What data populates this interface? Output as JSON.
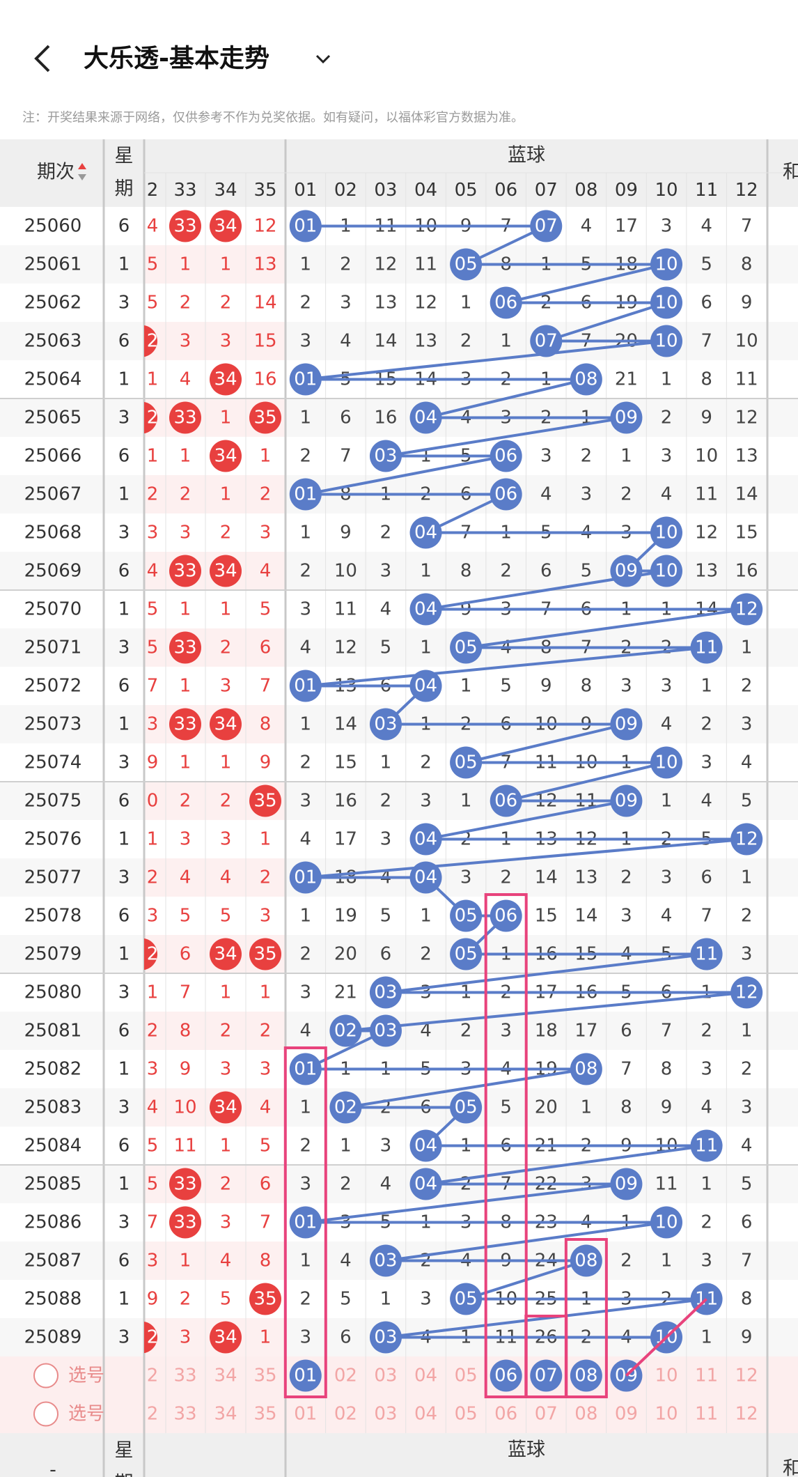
{
  "header": {
    "title": "大乐透-基本走势",
    "note": "注：开奖结果来源于网络，仅供参考不作为兑奖依据。如有疑问，以福体彩官方数据为准。"
  },
  "table": {
    "period_header": "期次",
    "week_header": [
      "星",
      "期"
    ],
    "blue_header": "蓝球",
    "sum_header": "和",
    "red_columns": [
      "2",
      "33",
      "34",
      "35"
    ],
    "blue_columns": [
      "01",
      "02",
      "03",
      "04",
      "05",
      "06",
      "07",
      "08",
      "09",
      "10",
      "11",
      "12"
    ],
    "rows": [
      {
        "period": "25060",
        "week": "6",
        "red": [
          "4",
          {
            "text": "33",
            "ball": true
          },
          {
            "text": "34",
            "ball": true
          },
          "12"
        ],
        "blue": [
          {
            "text": "01",
            "ball": true
          },
          "1",
          "11",
          "10",
          "9",
          "7",
          {
            "text": "07",
            "ball": true
          },
          "4",
          "17",
          "3",
          "4",
          "7"
        ]
      },
      {
        "period": "25061",
        "week": "1",
        "red": [
          "5",
          "1",
          "1",
          "13"
        ],
        "blue": [
          "1",
          "2",
          "12",
          "11",
          {
            "text": "05",
            "ball": true
          },
          "8",
          "1",
          "5",
          "18",
          {
            "text": "10",
            "ball": true
          },
          "5",
          "8"
        ]
      },
      {
        "period": "25062",
        "week": "3",
        "red": [
          "5",
          "2",
          "2",
          "14"
        ],
        "blue": [
          "2",
          "3",
          "13",
          "12",
          "1",
          {
            "text": "06",
            "ball": true
          },
          "2",
          "6",
          "19",
          {
            "text": "10",
            "ball": true
          },
          "6",
          "9"
        ]
      },
      {
        "period": "25063",
        "week": "6",
        "red": [
          {
            "text": "2",
            "ball": true
          },
          "3",
          "3",
          "15"
        ],
        "blue": [
          "3",
          "4",
          "14",
          "13",
          "2",
          "1",
          {
            "text": "07",
            "ball": true
          },
          "7",
          "20",
          {
            "text": "10",
            "ball": true
          },
          "7",
          "10"
        ]
      },
      {
        "period": "25064",
        "week": "1",
        "red": [
          "1",
          "4",
          {
            "text": "34",
            "ball": true
          },
          "16"
        ],
        "blue": [
          {
            "text": "01",
            "ball": true
          },
          "5",
          "15",
          "14",
          "3",
          "2",
          "1",
          {
            "text": "08",
            "ball": true
          },
          "21",
          "1",
          "8",
          "11"
        ]
      },
      {
        "period": "25065",
        "week": "3",
        "red": [
          {
            "text": "2",
            "ball": true
          },
          {
            "text": "33",
            "ball": true
          },
          "1",
          {
            "text": "35",
            "ball": true
          }
        ],
        "blue": [
          "1",
          "6",
          "16",
          {
            "text": "04",
            "ball": true
          },
          "4",
          "3",
          "2",
          "1",
          {
            "text": "09",
            "ball": true
          },
          "2",
          "9",
          "12"
        ]
      },
      {
        "period": "25066",
        "week": "6",
        "red": [
          "1",
          "1",
          {
            "text": "34",
            "ball": true
          },
          "1"
        ],
        "blue": [
          "2",
          "7",
          {
            "text": "03",
            "ball": true
          },
          "1",
          "5",
          {
            "text": "06",
            "ball": true
          },
          "3",
          "2",
          "1",
          "3",
          "10",
          "13"
        ]
      },
      {
        "period": "25067",
        "week": "1",
        "red": [
          "2",
          "2",
          "1",
          "2"
        ],
        "blue": [
          {
            "text": "01",
            "ball": true
          },
          "8",
          "1",
          "2",
          "6",
          {
            "text": "06",
            "ball": true
          },
          "4",
          "3",
          "2",
          "4",
          "11",
          "14"
        ]
      },
      {
        "period": "25068",
        "week": "3",
        "red": [
          "3",
          "3",
          "2",
          "3"
        ],
        "blue": [
          "1",
          "9",
          "2",
          {
            "text": "04",
            "ball": true
          },
          "7",
          "1",
          "5",
          "4",
          "3",
          {
            "text": "10",
            "ball": true
          },
          "12",
          "15"
        ]
      },
      {
        "period": "25069",
        "week": "6",
        "red": [
          "4",
          {
            "text": "33",
            "ball": true
          },
          {
            "text": "34",
            "ball": true
          },
          "4"
        ],
        "blue": [
          "2",
          "10",
          "3",
          "1",
          "8",
          "2",
          "6",
          "5",
          {
            "text": "09",
            "ball": true
          },
          {
            "text": "10",
            "ball": true
          },
          "13",
          "16"
        ]
      },
      {
        "period": "25070",
        "week": "1",
        "red": [
          "5",
          "1",
          "1",
          "5"
        ],
        "blue": [
          "3",
          "11",
          "4",
          {
            "text": "04",
            "ball": true
          },
          "9",
          "3",
          "7",
          "6",
          "1",
          "1",
          "14",
          {
            "text": "12",
            "ball": true
          }
        ]
      },
      {
        "period": "25071",
        "week": "3",
        "red": [
          "5",
          {
            "text": "33",
            "ball": true
          },
          "2",
          "6"
        ],
        "blue": [
          "4",
          "12",
          "5",
          "1",
          {
            "text": "05",
            "ball": true
          },
          "4",
          "8",
          "7",
          "2",
          "2",
          {
            "text": "11",
            "ball": true
          },
          "1"
        ]
      },
      {
        "period": "25072",
        "week": "6",
        "red": [
          "7",
          "1",
          "3",
          "7"
        ],
        "blue": [
          {
            "text": "01",
            "ball": true
          },
          "13",
          "6",
          {
            "text": "04",
            "ball": true
          },
          "1",
          "5",
          "9",
          "8",
          "3",
          "3",
          "1",
          "2"
        ]
      },
      {
        "period": "25073",
        "week": "1",
        "red": [
          "3",
          {
            "text": "33",
            "ball": true
          },
          {
            "text": "34",
            "ball": true
          },
          "8"
        ],
        "blue": [
          "1",
          "14",
          {
            "text": "03",
            "ball": true
          },
          "1",
          "2",
          "6",
          "10",
          "9",
          {
            "text": "09",
            "ball": true
          },
          "4",
          "2",
          "3"
        ]
      },
      {
        "period": "25074",
        "week": "3",
        "red": [
          "9",
          "1",
          "1",
          "9"
        ],
        "blue": [
          "2",
          "15",
          "1",
          "2",
          {
            "text": "05",
            "ball": true
          },
          "7",
          "11",
          "10",
          "1",
          {
            "text": "10",
            "ball": true
          },
          "3",
          "4"
        ]
      },
      {
        "period": "25075",
        "week": "6",
        "red": [
          "0",
          "2",
          "2",
          {
            "text": "35",
            "ball": true
          }
        ],
        "blue": [
          "3",
          "16",
          "2",
          "3",
          "1",
          {
            "text": "06",
            "ball": true
          },
          "12",
          "11",
          {
            "text": "09",
            "ball": true
          },
          "1",
          "4",
          "5"
        ]
      },
      {
        "period": "25076",
        "week": "1",
        "red": [
          "1",
          "3",
          "3",
          "1"
        ],
        "blue": [
          "4",
          "17",
          "3",
          {
            "text": "04",
            "ball": true
          },
          "2",
          "1",
          "13",
          "12",
          "1",
          "2",
          "5",
          {
            "text": "12",
            "ball": true
          }
        ]
      },
      {
        "period": "25077",
        "week": "3",
        "red": [
          "2",
          "4",
          "4",
          "2"
        ],
        "blue": [
          {
            "text": "01",
            "ball": true
          },
          "18",
          "4",
          {
            "text": "04",
            "ball": true
          },
          "3",
          "2",
          "14",
          "13",
          "2",
          "3",
          "6",
          "1"
        ]
      },
      {
        "period": "25078",
        "week": "6",
        "red": [
          "3",
          "5",
          "5",
          "3"
        ],
        "blue": [
          "1",
          "19",
          "5",
          "1",
          {
            "text": "05",
            "ball": true
          },
          {
            "text": "06",
            "ball": true
          },
          "15",
          "14",
          "3",
          "4",
          "7",
          "2"
        ]
      },
      {
        "period": "25079",
        "week": "1",
        "red": [
          {
            "text": "2",
            "ball": true
          },
          "6",
          {
            "text": "34",
            "ball": true
          },
          {
            "text": "35",
            "ball": true
          }
        ],
        "blue": [
          "2",
          "20",
          "6",
          "2",
          {
            "text": "05",
            "ball": true
          },
          "1",
          "16",
          "15",
          "4",
          "5",
          {
            "text": "11",
            "ball": true
          },
          "3"
        ]
      },
      {
        "period": "25080",
        "week": "3",
        "red": [
          "1",
          "7",
          "1",
          "1"
        ],
        "blue": [
          "3",
          "21",
          {
            "text": "03",
            "ball": true
          },
          "3",
          "1",
          "2",
          "17",
          "16",
          "5",
          "6",
          "1",
          {
            "text": "12",
            "ball": true
          }
        ]
      },
      {
        "period": "25081",
        "week": "6",
        "red": [
          "2",
          "8",
          "2",
          "2"
        ],
        "blue": [
          "4",
          {
            "text": "02",
            "ball": true
          },
          {
            "text": "03",
            "ball": true
          },
          "4",
          "2",
          "3",
          "18",
          "17",
          "6",
          "7",
          "2",
          "1"
        ]
      },
      {
        "period": "25082",
        "week": "1",
        "red": [
          "3",
          "9",
          "3",
          "3"
        ],
        "blue": [
          {
            "text": "01",
            "ball": true
          },
          "1",
          "1",
          "5",
          "3",
          "4",
          "19",
          {
            "text": "08",
            "ball": true
          },
          "7",
          "8",
          "3",
          "2"
        ]
      },
      {
        "period": "25083",
        "week": "3",
        "red": [
          "4",
          "10",
          {
            "text": "34",
            "ball": true
          },
          "4"
        ],
        "blue": [
          "1",
          {
            "text": "02",
            "ball": true
          },
          "2",
          "6",
          {
            "text": "05",
            "ball": true
          },
          "5",
          "20",
          "1",
          "8",
          "9",
          "4",
          "3"
        ]
      },
      {
        "period": "25084",
        "week": "6",
        "red": [
          "5",
          "11",
          "1",
          "5"
        ],
        "blue": [
          "2",
          "1",
          "3",
          {
            "text": "04",
            "ball": true
          },
          "1",
          "6",
          "21",
          "2",
          "9",
          "10",
          {
            "text": "11",
            "ball": true
          },
          "4"
        ]
      },
      {
        "period": "25085",
        "week": "1",
        "red": [
          "5",
          {
            "text": "33",
            "ball": true
          },
          "2",
          "6"
        ],
        "blue": [
          "3",
          "2",
          "4",
          {
            "text": "04",
            "ball": true
          },
          "2",
          "7",
          "22",
          "3",
          {
            "text": "09",
            "ball": true
          },
          "11",
          "1",
          "5"
        ]
      },
      {
        "period": "25086",
        "week": "3",
        "red": [
          "7",
          {
            "text": "33",
            "ball": true
          },
          "3",
          "7"
        ],
        "blue": [
          {
            "text": "01",
            "ball": true
          },
          "3",
          "5",
          "1",
          "3",
          "8",
          "23",
          "4",
          "1",
          {
            "text": "10",
            "ball": true
          },
          "2",
          "6"
        ]
      },
      {
        "period": "25087",
        "week": "6",
        "red": [
          "3",
          "1",
          "4",
          "8"
        ],
        "blue": [
          "1",
          "4",
          {
            "text": "03",
            "ball": true
          },
          "2",
          "4",
          "9",
          "24",
          {
            "text": "08",
            "ball": true
          },
          "2",
          "1",
          "3",
          "7"
        ]
      },
      {
        "period": "25088",
        "week": "1",
        "red": [
          "9",
          "2",
          "5",
          {
            "text": "35",
            "ball": true
          }
        ],
        "blue": [
          "2",
          "5",
          "1",
          "3",
          {
            "text": "05",
            "ball": true
          },
          "10",
          "25",
          "1",
          "3",
          "2",
          {
            "text": "11",
            "ball": true
          },
          "8"
        ]
      },
      {
        "period": "25089",
        "week": "3",
        "red": [
          {
            "text": "2",
            "ball": true
          },
          "3",
          {
            "text": "34",
            "ball": true
          },
          "1"
        ],
        "blue": [
          "3",
          "6",
          {
            "text": "03",
            "ball": true
          },
          "4",
          "1",
          "11",
          "26",
          "2",
          "4",
          {
            "text": "10",
            "ball": true
          },
          "1",
          "9"
        ]
      }
    ],
    "selection_rows": [
      {
        "label": "选号",
        "red": [
          "2",
          "33",
          "34",
          "35"
        ],
        "blue": [
          {
            "text": "01",
            "ball": true
          },
          "02",
          "03",
          "04",
          "05",
          {
            "text": "06",
            "ball": true
          },
          {
            "text": "07",
            "ball": true
          },
          {
            "text": "08",
            "ball": true
          },
          {
            "text": "09",
            "ball": true
          },
          "10",
          "11",
          "12"
        ]
      },
      {
        "label": "选号",
        "red": [
          "2",
          "33",
          "34",
          "35"
        ],
        "blue": [
          "01",
          "02",
          "03",
          "04",
          "05",
          "06",
          "07",
          "08",
          "09",
          "10",
          "11",
          "12"
        ]
      }
    ],
    "bottom_header": {
      "period": "-",
      "week": [
        "星",
        "期"
      ],
      "blue": "蓝球",
      "sum": "和"
    }
  }
}
